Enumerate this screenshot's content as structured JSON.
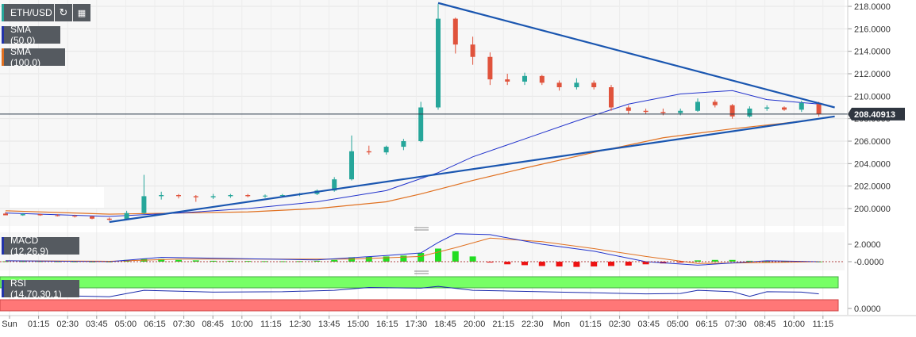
{
  "symbol": "ETH/USD",
  "indicators": {
    "sma50": "SMA (50,0)",
    "sma100": "SMA (100,0)",
    "macd": "MACD (12,26,9)",
    "rsi": "RSI (14,70,30,1)"
  },
  "toolbar": {
    "refresh_icon": "refresh-icon",
    "calendar_icon": "calendar-icon"
  },
  "colors": {
    "up": "#26a69a",
    "down": "#e0533c",
    "sma50": "#2233cc",
    "sma100": "#e07020",
    "trendline": "#1a56b0",
    "macd_pos": "#22dd22",
    "macd_neg": "#ee1111",
    "rsi_overbought": "#77ff66",
    "rsi_oversold": "#ff7777",
    "rsi_line": "#1a2aaa"
  },
  "chart_data": {
    "type": "candlestick",
    "current_price": "208.40913",
    "y_ticks": [
      "218.0000",
      "216.0000",
      "214.0000",
      "212.0000",
      "210.0000",
      "208.0000",
      "206.0000",
      "204.0000",
      "202.0000",
      "200.0000"
    ],
    "ylim": [
      198.7,
      218.5
    ],
    "x_ticks": [
      "Sun",
      "01:15",
      "02:30",
      "03:45",
      "05:00",
      "06:15",
      "07:30",
      "08:45",
      "10:00",
      "11:15",
      "12:30",
      "13:45",
      "15:00",
      "16:15",
      "17:30",
      "18:45",
      "20:00",
      "21:15",
      "22:30",
      "Mon",
      "01:15",
      "02:30",
      "03:45",
      "05:00",
      "06:15",
      "07:30",
      "08:45",
      "10:00",
      "11:15"
    ],
    "macd_ticks": [
      "2.0000",
      "-0.0000"
    ],
    "rsi_ticks": [
      "0.0000"
    ],
    "price_line": [
      [
        0,
        199.6
      ],
      [
        1,
        199.5
      ],
      [
        2,
        199.5
      ],
      [
        3,
        199.4
      ],
      [
        4,
        199.3
      ],
      [
        5,
        199.1
      ],
      [
        6,
        199.0
      ],
      [
        7,
        199.6
      ],
      [
        8,
        201.0
      ],
      [
        9,
        201.2
      ],
      [
        10,
        201.1
      ],
      [
        11,
        201.0
      ],
      [
        12,
        201.0
      ],
      [
        13,
        201.2
      ],
      [
        14,
        201.1
      ],
      [
        15,
        201.1
      ],
      [
        16,
        201.2
      ],
      [
        17,
        201.3
      ],
      [
        18,
        201.6
      ],
      [
        19,
        202.6
      ],
      [
        20,
        205.1
      ],
      [
        21,
        205.0
      ],
      [
        22,
        205.5
      ],
      [
        23,
        206.0
      ],
      [
        24,
        209.0
      ],
      [
        25,
        216.5
      ],
      [
        26,
        214.6
      ],
      [
        27,
        213.5
      ],
      [
        28,
        211.5
      ],
      [
        29,
        211.3
      ],
      [
        30,
        211.3
      ],
      [
        31,
        211.2
      ],
      [
        32,
        210.8
      ],
      [
        33,
        211.2
      ],
      [
        34,
        210.8
      ],
      [
        35,
        209.0
      ],
      [
        36,
        208.7
      ],
      [
        37,
        208.7
      ],
      [
        38,
        208.5
      ],
      [
        39,
        208.7
      ],
      [
        40,
        209.1
      ],
      [
        41,
        209.2
      ],
      [
        42,
        209.0
      ],
      [
        43,
        208.8
      ],
      [
        44,
        209.0
      ],
      [
        45,
        208.9
      ],
      [
        46,
        208.7
      ],
      [
        47,
        208.4
      ]
    ],
    "candles": [
      {
        "o": 199.55,
        "h": 199.7,
        "l": 199.4,
        "c": 199.4
      },
      {
        "o": 199.4,
        "h": 199.6,
        "l": 199.35,
        "c": 199.5
      },
      {
        "o": 199.5,
        "h": 199.55,
        "l": 199.35,
        "c": 199.4
      },
      {
        "o": 199.4,
        "h": 199.5,
        "l": 199.3,
        "c": 199.35
      },
      {
        "o": 199.35,
        "h": 199.45,
        "l": 199.2,
        "c": 199.3
      },
      {
        "o": 199.3,
        "h": 199.35,
        "l": 199.05,
        "c": 199.1
      },
      {
        "o": 199.1,
        "h": 199.2,
        "l": 198.9,
        "c": 199.0
      },
      {
        "o": 199.0,
        "h": 199.8,
        "l": 198.95,
        "c": 199.6
      },
      {
        "o": 199.6,
        "h": 203.0,
        "l": 199.5,
        "c": 201.1
      },
      {
        "o": 201.1,
        "h": 201.5,
        "l": 200.8,
        "c": 201.2
      },
      {
        "o": 201.2,
        "h": 201.3,
        "l": 200.9,
        "c": 201.1
      },
      {
        "o": 201.1,
        "h": 201.2,
        "l": 200.6,
        "c": 201.0
      },
      {
        "o": 201.0,
        "h": 201.3,
        "l": 200.85,
        "c": 201.1
      },
      {
        "o": 201.1,
        "h": 201.3,
        "l": 200.95,
        "c": 201.2
      },
      {
        "o": 201.2,
        "h": 201.3,
        "l": 201.0,
        "c": 201.1
      },
      {
        "o": 201.1,
        "h": 201.25,
        "l": 200.95,
        "c": 201.15
      },
      {
        "o": 201.15,
        "h": 201.3,
        "l": 201.0,
        "c": 201.2
      },
      {
        "o": 201.2,
        "h": 201.4,
        "l": 201.1,
        "c": 201.3
      },
      {
        "o": 201.3,
        "h": 201.7,
        "l": 201.2,
        "c": 201.6
      },
      {
        "o": 201.6,
        "h": 202.8,
        "l": 201.5,
        "c": 202.6
      },
      {
        "o": 202.6,
        "h": 206.5,
        "l": 202.5,
        "c": 205.1
      },
      {
        "o": 205.1,
        "h": 205.6,
        "l": 204.8,
        "c": 205.0
      },
      {
        "o": 205.0,
        "h": 205.6,
        "l": 204.8,
        "c": 205.5
      },
      {
        "o": 205.5,
        "h": 206.2,
        "l": 205.2,
        "c": 206.0
      },
      {
        "o": 206.0,
        "h": 209.5,
        "l": 205.9,
        "c": 209.0
      },
      {
        "o": 209.0,
        "h": 218.2,
        "l": 208.8,
        "c": 216.9
      },
      {
        "o": 216.9,
        "h": 217.0,
        "l": 213.8,
        "c": 214.6
      },
      {
        "o": 214.6,
        "h": 215.3,
        "l": 212.8,
        "c": 213.5
      },
      {
        "o": 213.5,
        "h": 213.9,
        "l": 211.0,
        "c": 211.5
      },
      {
        "o": 211.5,
        "h": 212.0,
        "l": 211.0,
        "c": 211.3
      },
      {
        "o": 211.3,
        "h": 212.1,
        "l": 211.0,
        "c": 211.8
      },
      {
        "o": 211.8,
        "h": 211.9,
        "l": 211.0,
        "c": 211.2
      },
      {
        "o": 211.2,
        "h": 211.4,
        "l": 210.5,
        "c": 210.8
      },
      {
        "o": 210.8,
        "h": 211.6,
        "l": 210.6,
        "c": 211.2
      },
      {
        "o": 211.2,
        "h": 211.4,
        "l": 210.6,
        "c": 210.8
      },
      {
        "o": 210.8,
        "h": 211.0,
        "l": 208.7,
        "c": 209.0
      },
      {
        "o": 209.0,
        "h": 209.2,
        "l": 208.4,
        "c": 208.7
      },
      {
        "o": 208.7,
        "h": 208.9,
        "l": 208.4,
        "c": 208.6
      },
      {
        "o": 208.6,
        "h": 208.9,
        "l": 208.3,
        "c": 208.5
      },
      {
        "o": 208.5,
        "h": 208.9,
        "l": 208.3,
        "c": 208.7
      },
      {
        "o": 208.7,
        "h": 209.8,
        "l": 208.6,
        "c": 209.5
      },
      {
        "o": 209.5,
        "h": 209.7,
        "l": 209.0,
        "c": 209.2
      },
      {
        "o": 209.2,
        "h": 209.3,
        "l": 208.0,
        "c": 208.2
      },
      {
        "o": 208.2,
        "h": 209.1,
        "l": 208.1,
        "c": 208.9
      },
      {
        "o": 208.9,
        "h": 209.2,
        "l": 208.7,
        "c": 209.0
      },
      {
        "o": 209.0,
        "h": 209.1,
        "l": 208.7,
        "c": 208.8
      },
      {
        "o": 208.8,
        "h": 209.6,
        "l": 208.6,
        "c": 209.4
      },
      {
        "o": 209.4,
        "h": 209.5,
        "l": 208.2,
        "c": 208.4
      }
    ],
    "sma50": [
      [
        0,
        199.6
      ],
      [
        6,
        199.3
      ],
      [
        10,
        199.6
      ],
      [
        14,
        200.0
      ],
      [
        18,
        200.6
      ],
      [
        22,
        201.6
      ],
      [
        25,
        203.2
      ],
      [
        27,
        204.6
      ],
      [
        30,
        206.2
      ],
      [
        33,
        207.8
      ],
      [
        36,
        209.3
      ],
      [
        39,
        210.2
      ],
      [
        42,
        210.5
      ],
      [
        44,
        209.7
      ],
      [
        47,
        209.3
      ]
    ],
    "sma100": [
      [
        0,
        199.8
      ],
      [
        6,
        199.5
      ],
      [
        10,
        199.6
      ],
      [
        14,
        199.7
      ],
      [
        18,
        200.0
      ],
      [
        22,
        200.6
      ],
      [
        24,
        201.3
      ],
      [
        27,
        202.5
      ],
      [
        30,
        203.6
      ],
      [
        34,
        205.0
      ],
      [
        38,
        206.3
      ],
      [
        42,
        207.1
      ],
      [
        45,
        207.6
      ],
      [
        47,
        208.0
      ]
    ],
    "trend_upper": [
      [
        25,
        218.3
      ],
      [
        47,
        209.0
      ]
    ],
    "trend_lower": [
      [
        6,
        198.8
      ],
      [
        47,
        208.2
      ]
    ],
    "macd_hist": [
      0.05,
      0.05,
      0.05,
      0.04,
      0.03,
      0.02,
      0.02,
      0.2,
      0.3,
      0.3,
      0.2,
      0.15,
      0.1,
      0.1,
      0.08,
      0.06,
      0.05,
      0.06,
      0.1,
      0.2,
      0.5,
      0.55,
      0.6,
      0.7,
      1.0,
      1.5,
      1.2,
      0.6,
      -0.1,
      -0.3,
      -0.4,
      -0.5,
      -0.55,
      -0.6,
      -0.55,
      -0.5,
      -0.45,
      -0.3,
      -0.2,
      -0.1,
      0.15,
      0.2,
      0.2,
      0.1,
      0.05,
      0.05,
      0.05,
      0.02
    ],
    "macd_line": [
      [
        0,
        0.1
      ],
      [
        6,
        0.0
      ],
      [
        9,
        0.5
      ],
      [
        12,
        0.4
      ],
      [
        18,
        0.2
      ],
      [
        22,
        0.7
      ],
      [
        24,
        1.0
      ],
      [
        25,
        2.2
      ],
      [
        26,
        3.2
      ],
      [
        28,
        3.1
      ],
      [
        31,
        2.0
      ],
      [
        34,
        1.2
      ],
      [
        37,
        0.0
      ],
      [
        40,
        -0.4
      ],
      [
        44,
        0.1
      ],
      [
        47,
        0.0
      ]
    ],
    "signal_line": [
      [
        0,
        0.1
      ],
      [
        6,
        0.05
      ],
      [
        10,
        0.3
      ],
      [
        14,
        0.3
      ],
      [
        20,
        0.3
      ],
      [
        24,
        0.6
      ],
      [
        26,
        1.6
      ],
      [
        28,
        2.7
      ],
      [
        31,
        2.3
      ],
      [
        34,
        1.5
      ],
      [
        37,
        0.6
      ],
      [
        40,
        -0.2
      ],
      [
        44,
        -0.1
      ],
      [
        47,
        0.0
      ]
    ],
    "rsi_line": [
      [
        0,
        48
      ],
      [
        3,
        47
      ],
      [
        6,
        44
      ],
      [
        8,
        62
      ],
      [
        12,
        57
      ],
      [
        16,
        58
      ],
      [
        19,
        62
      ],
      [
        21,
        70
      ],
      [
        24,
        68
      ],
      [
        25,
        73
      ],
      [
        27,
        62
      ],
      [
        29,
        60
      ],
      [
        32,
        57
      ],
      [
        35,
        54
      ],
      [
        37,
        52
      ],
      [
        39,
        53
      ],
      [
        40,
        62
      ],
      [
        42,
        58
      ],
      [
        43,
        45
      ],
      [
        44,
        58
      ],
      [
        46,
        57
      ],
      [
        47,
        52
      ]
    ]
  }
}
